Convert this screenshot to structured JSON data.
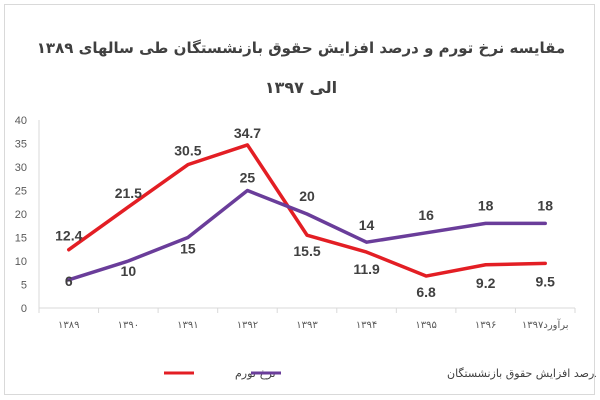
{
  "chart_data": {
    "type": "line",
    "title": "مقایسه نرخ تورم و درصد افزایش حقوق بازنشستگان طی سالهای ۱۳۸۹",
    "subtitle": "الی ۱۳۹۷",
    "categories": [
      "۱۳۸۹",
      "۱۳۹۰",
      "۱۳۹۱",
      "۱۳۹۲",
      "۱۳۹۳",
      "۱۳۹۴",
      "۱۳۹۵",
      "۱۳۹۶",
      "برآورد۱۳۹۷"
    ],
    "series": [
      {
        "name": "نرخ تورم",
        "color": "#e31e24",
        "values": [
          12.4,
          21.5,
          30.5,
          34.7,
          15.5,
          11.9,
          6.8,
          9.2,
          9.5
        ]
      },
      {
        "name": "درصد افزایش حقوق بازنشستگان",
        "color": "#6a3d9a",
        "values": [
          6,
          10,
          15,
          25,
          20,
          14,
          16,
          18,
          18
        ]
      }
    ],
    "data_labels": [
      [
        "12.4",
        "21.5",
        "30.5",
        "34.7",
        "15.5",
        "11.9",
        "6.8",
        "9.2",
        "9.5"
      ],
      [
        "6",
        "10",
        "15",
        "25",
        "20",
        "14",
        "16",
        "18",
        "18"
      ]
    ],
    "yticks": [
      0,
      5,
      10,
      15,
      20,
      25,
      30,
      35,
      40
    ],
    "ylim": [
      0,
      40
    ],
    "xlabel": "",
    "ylabel": "",
    "grid": false,
    "legend_position": "bottom"
  }
}
